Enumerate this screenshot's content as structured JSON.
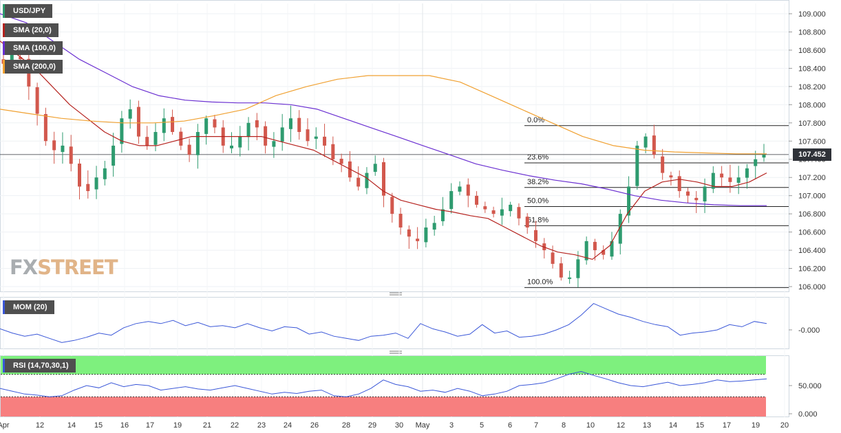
{
  "symbol": "USD/JPY",
  "legend": {
    "symbol": "USD/JPY",
    "sma20": "SMA (20,0)",
    "sma100": "SMA (100,0)",
    "sma200": "SMA (200,0)",
    "mom": "MOM (20)",
    "rsi": "RSI (14,70,30,1)"
  },
  "colors": {
    "up": "#2e9b6f",
    "down": "#d2584d",
    "sma20": "#b5211d",
    "sma100": "#6a2fd1",
    "sma200": "#f0a030",
    "indicator": "#3a57d8",
    "rsi_overbought": "#7ef07e",
    "rsi_oversold": "#f77f7f"
  },
  "watermark": {
    "part1": "FX",
    "part2": "STREET"
  },
  "current_price": "107.452",
  "chart_data": [
    {
      "type": "candlestick",
      "title": "USD/JPY",
      "ylim": [
        106.0,
        109.1
      ],
      "y_ticks": [
        "109.000",
        "108.800",
        "108.600",
        "108.400",
        "108.200",
        "108.000",
        "107.800",
        "107.600",
        "107.400",
        "107.200",
        "107.000",
        "106.800",
        "106.600",
        "106.400",
        "106.200",
        "106.000"
      ],
      "x_labels": [
        "Apr",
        "12",
        "14",
        "15",
        "16",
        "17",
        "19",
        "21",
        "22",
        "23",
        "24",
        "26",
        "28",
        "29",
        "30",
        "May",
        "3",
        "5",
        "6",
        "7",
        "8",
        "10",
        "12",
        "13",
        "14",
        "15",
        "17",
        "19",
        "20"
      ],
      "fibonacci": [
        {
          "label": "0.0%",
          "value": 107.77
        },
        {
          "label": "23.6%",
          "value": 107.36
        },
        {
          "label": "38.2%",
          "value": 107.09
        },
        {
          "label": "50.0%",
          "value": 106.88
        },
        {
          "label": "61.8%",
          "value": 106.67
        },
        {
          "label": "100.0%",
          "value": 105.99
        }
      ],
      "last_price": 107.452,
      "closes": [
        108.45,
        108.55,
        108.5,
        108.2,
        107.9,
        107.6,
        107.5,
        107.55,
        107.35,
        107.1,
        107.05,
        107.2,
        107.3,
        107.55,
        107.85,
        107.95,
        107.65,
        107.55,
        107.7,
        107.85,
        107.7,
        107.55,
        107.45,
        107.7,
        107.85,
        107.75,
        107.55,
        107.55,
        107.65,
        107.8,
        107.75,
        107.55,
        107.6,
        107.75,
        107.85,
        107.7,
        107.6,
        107.65,
        107.55,
        107.4,
        107.35,
        107.2,
        107.1,
        107.25,
        107.35,
        107.0,
        106.8,
        106.65,
        106.55,
        106.5,
        106.65,
        106.7,
        106.85,
        107.05,
        107.1,
        107.0,
        106.9,
        106.85,
        106.8,
        106.85,
        106.9,
        106.75,
        106.65,
        106.5,
        106.4,
        106.25,
        106.1,
        106.1,
        106.3,
        106.5,
        106.4,
        106.35,
        106.5,
        106.8,
        107.1,
        107.55,
        107.65,
        107.45,
        107.25,
        107.2,
        107.05,
        107.0,
        106.95,
        107.1,
        107.25,
        107.2,
        107.15,
        107.2,
        107.3,
        107.4,
        107.45
      ],
      "series": [
        {
          "name": "SMA (20,0)",
          "values": [
            108.7,
            108.55,
            108.4,
            108.2,
            108.0,
            107.85,
            107.7,
            107.6,
            107.55,
            107.55,
            107.6,
            107.65,
            107.65,
            107.65,
            107.65,
            107.65,
            107.6,
            107.55,
            107.5,
            107.4,
            107.3,
            107.2,
            107.05,
            106.95,
            106.9,
            106.85,
            106.82,
            106.78,
            106.75,
            106.65,
            106.55,
            106.45,
            106.38,
            106.35,
            106.3,
            106.45,
            106.8,
            107.05,
            107.15,
            107.18,
            107.15,
            107.1,
            107.1,
            107.15,
            107.25
          ]
        },
        {
          "name": "SMA (100,0)",
          "values": [
            109.0,
            108.9,
            108.7,
            108.5,
            108.35,
            108.2,
            108.1,
            108.05,
            108.03,
            108.02,
            108.02,
            108.0,
            107.95,
            107.85,
            107.75,
            107.65,
            107.55,
            107.45,
            107.35,
            107.28,
            107.22,
            107.17,
            107.13,
            107.07,
            107.0,
            106.95,
            106.92,
            106.9,
            106.89,
            106.89
          ]
        },
        {
          "name": "SMA (200,0)",
          "values": [
            107.95,
            107.9,
            107.85,
            107.82,
            107.8,
            107.8,
            107.82,
            107.88,
            107.95,
            108.1,
            108.2,
            108.28,
            108.32,
            108.32,
            108.32,
            108.25,
            108.1,
            107.95,
            107.8,
            107.65,
            107.55,
            107.5,
            107.48,
            107.47,
            107.46,
            107.46
          ]
        }
      ]
    },
    {
      "type": "line",
      "title": "MOM (20)",
      "y_ticks": [
        "-0.000"
      ],
      "series": [
        {
          "name": "MOM (20)",
          "values": [
            0.1,
            -0.3,
            -0.6,
            -0.4,
            -0.8,
            -1.2,
            -1.0,
            -0.7,
            -0.3,
            -0.5,
            0.2,
            0.6,
            0.8,
            0.6,
            0.9,
            0.4,
            0.7,
            0.3,
            0.4,
            0.2,
            0.6,
            0.2,
            -0.1,
            0.3,
            0.2,
            -0.4,
            -0.2,
            -0.6,
            -0.8,
            -1.0,
            -0.6,
            -0.5,
            -0.3,
            -0.8,
            0.6,
            0.1,
            -0.2,
            -0.6,
            -0.4,
            0.5,
            -0.3,
            -0.1,
            -0.7,
            -0.6,
            -0.4,
            0.0,
            0.5,
            1.4,
            2.5,
            2.0,
            1.5,
            1.2,
            0.8,
            0.5,
            0.3,
            -0.5,
            -0.3,
            -0.2,
            0.0,
            0.5,
            0.3,
            0.8,
            0.6
          ]
        }
      ]
    },
    {
      "type": "line",
      "title": "RSI (14,70,30,1)",
      "y_ticks": [
        "50.000",
        "0.000"
      ],
      "levels": {
        "overbought": 70,
        "oversold": 30
      },
      "ylim": [
        0,
        100
      ],
      "series": [
        {
          "name": "RSI (14,70,30,1)",
          "values": [
            45,
            40,
            35,
            33,
            30,
            32,
            42,
            50,
            46,
            55,
            48,
            52,
            50,
            42,
            45,
            48,
            44,
            42,
            46,
            50,
            45,
            40,
            35,
            38,
            36,
            40,
            42,
            32,
            30,
            35,
            45,
            60,
            52,
            48,
            40,
            42,
            38,
            45,
            40,
            32,
            35,
            40,
            50,
            52,
            55,
            62,
            70,
            75,
            68,
            62,
            55,
            50,
            48,
            52,
            56,
            50,
            52,
            55,
            60,
            57,
            58,
            60,
            62
          ]
        }
      ]
    }
  ]
}
